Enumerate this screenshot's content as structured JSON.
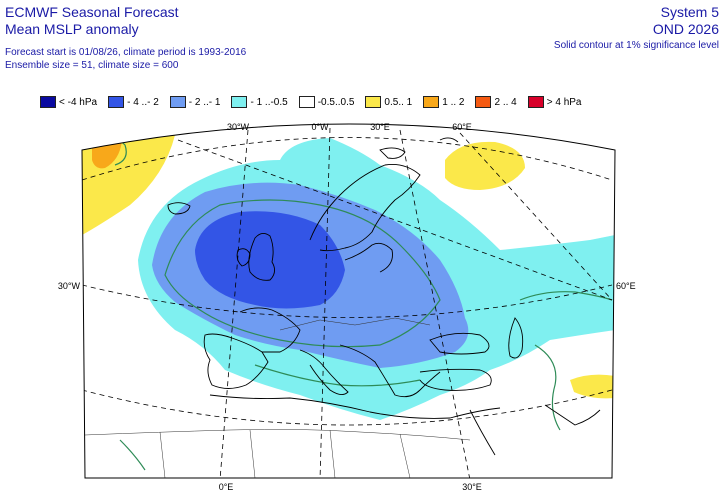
{
  "header": {
    "title_line1": "ECMWF Seasonal Forecast",
    "title_line2": "Mean MSLP anomaly",
    "info_line1": "Forecast start is 01/08/26, climate period is 1993-2016",
    "info_line2": "Ensemble size = 51, climate size = 600",
    "system": "System 5",
    "season": "OND 2026",
    "significance_note": "Solid contour at 1% significance level"
  },
  "legend": [
    {
      "label": "< -4 hPa",
      "color": "#0a0aa0"
    },
    {
      "label": "- 4 ..- 2",
      "color": "#3355e6"
    },
    {
      "label": "- 2 ..- 1",
      "color": "#6f9cf2"
    },
    {
      "label": "- 1 ..-0.5",
      "color": "#7ff0f0"
    },
    {
      "label": "-0.5..0.5",
      "color": "#ffffff"
    },
    {
      "label": "0.5.. 1",
      "color": "#fbe84a"
    },
    {
      "label": "1 .. 2",
      "color": "#f8a81a"
    },
    {
      "label": "2 .. 4",
      "color": "#f55a12"
    },
    {
      "label": "> 4 hPa",
      "color": "#d8002a"
    }
  ],
  "grid_labels": {
    "top": [
      "30°W",
      "0°W",
      "30°E",
      "60°E"
    ],
    "left": "30°W",
    "right": "60°E",
    "bottom": [
      "0°E",
      "30°E"
    ]
  },
  "map": {
    "projection": "polar stereographic",
    "region": "Europe / North Atlantic",
    "significance_contour_color": "#2e8b57",
    "coastline_color": "#000000"
  }
}
